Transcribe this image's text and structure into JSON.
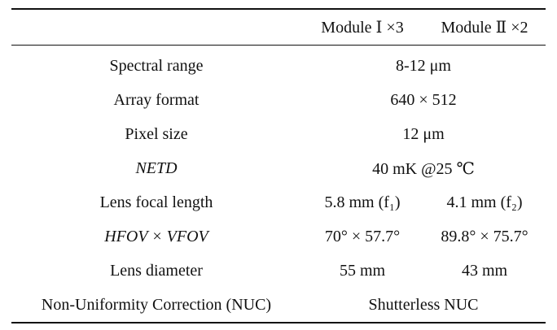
{
  "table": {
    "header": [
      "",
      "Module Ⅰ ×3",
      "Module Ⅱ ×2"
    ],
    "rows": [
      {
        "label": "Spectral range",
        "merged": "8-12 μm"
      },
      {
        "label": "Array format",
        "merged": "640 × 512"
      },
      {
        "label": "Pixel size",
        "merged": "12 μm"
      },
      {
        "label": "NETD",
        "label_italic": true,
        "merged": "40 mK @25 ℃"
      },
      {
        "label": "Lens focal length",
        "module1": "5.8 mm (f₁)",
        "module2": "4.1 mm (f₂)"
      },
      {
        "label": "HFOV × VFOV",
        "label_italic": true,
        "module1": "70° × 57.7°",
        "module2": "89.8° × 75.7°"
      },
      {
        "label": "Lens diameter",
        "module1": "55 mm",
        "module2": "43 mm"
      },
      {
        "label": "Non-Uniformity Correction (NUC)",
        "merged": "Shutterless NUC"
      }
    ]
  }
}
